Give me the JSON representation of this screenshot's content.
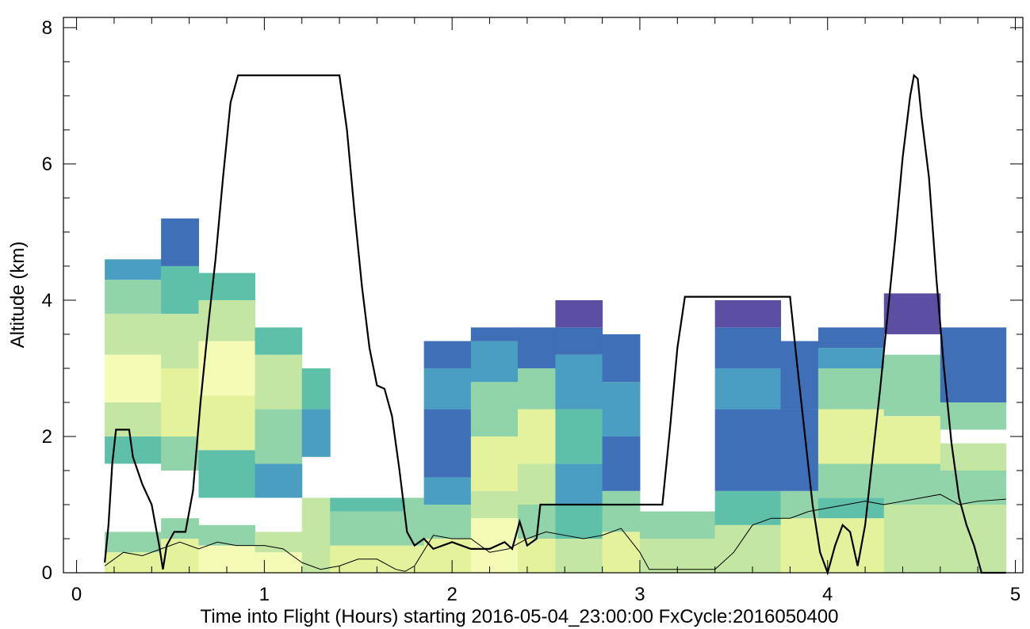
{
  "chart_data": {
    "type": "curtain",
    "xlabel": "Time into Flight (Hours) starting 2016-05-04_23:00:00  FxCycle:2016050400",
    "ylabel": "Altitude (km)",
    "xlim": [
      -0.07,
      5.04
    ],
    "ylim": [
      0,
      8.15
    ],
    "xticks": [
      0,
      1,
      2,
      3,
      4,
      5
    ],
    "yticks": [
      0,
      2,
      4,
      6,
      8
    ],
    "xminor": 5,
    "yminor": 4,
    "palette": [
      "#f4fbb4",
      "#e4f29c",
      "#c3e6a2",
      "#91d4a9",
      "#5fc0aa",
      "#4a9ec1",
      "#3f6fb6",
      "#5c4ea3"
    ],
    "curtain": [
      {
        "x": [
          0.15,
          0.45
        ],
        "segments": [
          [
            0,
            0.3,
            1
          ],
          [
            0.3,
            0.6,
            3
          ],
          [
            1.6,
            2.0,
            4
          ],
          [
            2.0,
            2.5,
            2
          ],
          [
            2.5,
            3.2,
            0
          ],
          [
            3.2,
            3.8,
            2
          ],
          [
            3.8,
            4.3,
            3
          ],
          [
            4.3,
            4.6,
            5
          ]
        ]
      },
      {
        "x": [
          0.45,
          0.65
        ],
        "segments": [
          [
            0,
            0.5,
            1
          ],
          [
            0.5,
            0.8,
            3
          ],
          [
            1.5,
            2.0,
            3
          ],
          [
            2.0,
            3.0,
            1
          ],
          [
            3.0,
            3.8,
            2
          ],
          [
            3.8,
            4.5,
            4
          ],
          [
            4.5,
            5.2,
            6
          ]
        ]
      },
      {
        "x": [
          0.65,
          0.95
        ],
        "segments": [
          [
            0,
            0.4,
            0
          ],
          [
            0.4,
            0.7,
            3
          ],
          [
            1.1,
            1.8,
            4
          ],
          [
            1.8,
            2.6,
            1
          ],
          [
            2.6,
            3.4,
            0
          ],
          [
            3.4,
            4.0,
            2
          ],
          [
            4.0,
            4.4,
            4
          ]
        ]
      },
      {
        "x": [
          0.95,
          1.2
        ],
        "segments": [
          [
            0,
            0.3,
            0
          ],
          [
            0.3,
            0.6,
            2
          ],
          [
            1.1,
            1.6,
            5
          ],
          [
            1.6,
            2.4,
            3
          ],
          [
            2.4,
            3.2,
            2
          ],
          [
            3.2,
            3.6,
            4
          ]
        ]
      },
      {
        "x": [
          1.2,
          1.35
        ],
        "segments": [
          [
            0,
            1.1,
            2
          ],
          [
            1.7,
            2.4,
            5
          ],
          [
            2.4,
            3.0,
            4
          ]
        ]
      },
      {
        "x": [
          1.35,
          1.75
        ],
        "segments": [
          [
            0,
            0.4,
            1
          ],
          [
            0.4,
            0.9,
            3
          ],
          [
            0.9,
            1.1,
            4
          ]
        ]
      },
      {
        "x": [
          1.75,
          1.85
        ],
        "segments": [
          [
            0,
            0.4,
            1
          ],
          [
            0.4,
            1.1,
            3
          ]
        ]
      },
      {
        "x": [
          1.85,
          2.1
        ],
        "segments": [
          [
            0,
            0.5,
            1
          ],
          [
            0.5,
            1.0,
            3
          ],
          [
            1.0,
            1.4,
            5
          ],
          [
            1.4,
            2.4,
            6
          ],
          [
            2.4,
            3.0,
            5
          ],
          [
            3.0,
            3.4,
            6
          ]
        ]
      },
      {
        "x": [
          2.1,
          2.35
        ],
        "segments": [
          [
            0,
            0.8,
            0
          ],
          [
            0.8,
            1.2,
            2
          ],
          [
            1.2,
            2.0,
            1
          ],
          [
            2.0,
            2.8,
            3
          ],
          [
            2.8,
            3.4,
            5
          ],
          [
            3.4,
            3.6,
            6
          ]
        ]
      },
      {
        "x": [
          2.35,
          2.55
        ],
        "segments": [
          [
            0,
            0.5,
            1
          ],
          [
            0.5,
            1.0,
            3
          ],
          [
            1.0,
            1.6,
            2
          ],
          [
            1.6,
            2.4,
            1
          ],
          [
            2.4,
            3.0,
            3
          ],
          [
            3.0,
            3.6,
            6
          ]
        ]
      },
      {
        "x": [
          2.55,
          2.8
        ],
        "segments": [
          [
            0,
            0.5,
            2
          ],
          [
            0.5,
            1.0,
            4
          ],
          [
            1.0,
            1.6,
            5
          ],
          [
            1.6,
            2.4,
            4
          ],
          [
            2.4,
            3.2,
            5
          ],
          [
            3.2,
            3.6,
            6
          ],
          [
            3.6,
            4.0,
            7
          ]
        ]
      },
      {
        "x": [
          2.8,
          3.0
        ],
        "segments": [
          [
            0,
            0.6,
            1
          ],
          [
            0.6,
            1.2,
            3
          ],
          [
            1.2,
            2.0,
            6
          ],
          [
            2.0,
            2.8,
            5
          ],
          [
            2.8,
            3.5,
            6
          ]
        ]
      },
      {
        "x": [
          3.0,
          3.4
        ],
        "segments": [
          [
            0,
            0.5,
            2
          ],
          [
            0.5,
            0.9,
            3
          ]
        ]
      },
      {
        "x": [
          3.4,
          3.75
        ],
        "segments": [
          [
            0,
            0.7,
            2
          ],
          [
            0.7,
            1.2,
            4
          ],
          [
            1.2,
            2.4,
            6
          ],
          [
            2.4,
            3.0,
            5
          ],
          [
            3.0,
            3.6,
            6
          ],
          [
            3.6,
            4.0,
            7
          ]
        ]
      },
      {
        "x": [
          3.75,
          3.95
        ],
        "segments": [
          [
            0,
            0.8,
            1
          ],
          [
            0.8,
            1.2,
            3
          ],
          [
            1.2,
            2.4,
            6
          ],
          [
            2.4,
            3.4,
            6
          ]
        ]
      },
      {
        "x": [
          3.95,
          4.3
        ],
        "segments": [
          [
            0,
            0.8,
            1
          ],
          [
            0.8,
            1.1,
            4
          ],
          [
            1.1,
            1.6,
            3
          ],
          [
            1.6,
            2.4,
            1
          ],
          [
            2.4,
            3.0,
            3
          ],
          [
            3.0,
            3.3,
            5
          ],
          [
            3.3,
            3.6,
            6
          ]
        ]
      },
      {
        "x": [
          4.3,
          4.6
        ],
        "segments": [
          [
            0,
            1.0,
            2
          ],
          [
            1.0,
            1.6,
            3
          ],
          [
            1.6,
            2.3,
            1
          ],
          [
            2.3,
            3.2,
            3
          ],
          [
            3.5,
            4.1,
            7
          ]
        ]
      },
      {
        "x": [
          4.6,
          4.95
        ],
        "segments": [
          [
            0,
            1.0,
            2
          ],
          [
            1.0,
            1.5,
            3
          ],
          [
            1.5,
            1.9,
            2
          ],
          [
            2.1,
            2.5,
            3
          ],
          [
            2.5,
            3.6,
            6
          ]
        ]
      }
    ],
    "series": [
      {
        "color": "#000000",
        "width": 2.2,
        "x": [
          0.15,
          0.17,
          0.19,
          0.21,
          0.28,
          0.3,
          0.35,
          0.4,
          0.44,
          0.46,
          0.48,
          0.52,
          0.58,
          0.62,
          0.66,
          0.7,
          0.74,
          0.78,
          0.82,
          0.86,
          1.4,
          1.44,
          1.48,
          1.52,
          1.56,
          1.6,
          1.64,
          1.68,
          1.72,
          1.76,
          1.8,
          1.85,
          1.9,
          2.0,
          2.1,
          2.2,
          2.28,
          2.32,
          2.36,
          2.4,
          2.45,
          2.47,
          3.12,
          3.16,
          3.2,
          3.24,
          3.8,
          3.84,
          3.88,
          3.92,
          3.96,
          4.0,
          4.04,
          4.08,
          4.12,
          4.16,
          4.2,
          4.24,
          4.28,
          4.32,
          4.36,
          4.4,
          4.44,
          4.46,
          4.48,
          4.5,
          4.54,
          4.58,
          4.62,
          4.66,
          4.7,
          4.74,
          4.78,
          4.82,
          4.95
        ],
        "values": [
          0.15,
          0.7,
          1.6,
          2.1,
          2.1,
          1.7,
          1.3,
          1.0,
          0.4,
          0.05,
          0.4,
          0.6,
          0.6,
          1.2,
          2.5,
          3.6,
          4.6,
          5.8,
          6.9,
          7.3,
          7.3,
          6.5,
          5.3,
          4.2,
          3.3,
          2.75,
          2.7,
          2.3,
          1.5,
          0.6,
          0.4,
          0.5,
          0.35,
          0.45,
          0.35,
          0.35,
          0.45,
          0.35,
          0.75,
          0.4,
          0.5,
          1.0,
          1.0,
          2.1,
          3.3,
          4.05,
          4.05,
          3.0,
          2.0,
          1.0,
          0.3,
          0.0,
          0.4,
          0.7,
          0.6,
          0.1,
          0.7,
          1.7,
          2.7,
          3.8,
          4.9,
          6.1,
          7.0,
          7.3,
          7.25,
          6.7,
          5.8,
          4.3,
          3.0,
          1.9,
          1.1,
          0.7,
          0.4,
          0.0,
          0.0
        ]
      },
      {
        "color": "#000000",
        "width": 1,
        "x": [
          0.15,
          0.25,
          0.35,
          0.45,
          0.55,
          0.65,
          0.75,
          0.85,
          1.0,
          1.1,
          1.2,
          1.3,
          1.4,
          1.5,
          1.6,
          1.7,
          1.75,
          1.8,
          1.9,
          2.0,
          2.1,
          2.2,
          2.3,
          2.4,
          2.5,
          2.6,
          2.7,
          2.8,
          2.9,
          3.0,
          3.05,
          3.2,
          3.4,
          3.5,
          3.6,
          3.7,
          3.8,
          3.9,
          4.0,
          4.1,
          4.2,
          4.3,
          4.4,
          4.5,
          4.6,
          4.7,
          4.8,
          4.95
        ],
        "values": [
          0.1,
          0.3,
          0.25,
          0.35,
          0.45,
          0.35,
          0.45,
          0.4,
          0.4,
          0.35,
          0.15,
          0.05,
          0.1,
          0.2,
          0.2,
          0.05,
          0.02,
          0.1,
          0.55,
          0.5,
          0.5,
          0.3,
          0.35,
          0.5,
          0.6,
          0.55,
          0.5,
          0.55,
          0.65,
          0.3,
          0.05,
          0.05,
          0.05,
          0.3,
          0.7,
          0.8,
          0.8,
          0.9,
          0.95,
          1.0,
          1.05,
          1.0,
          1.05,
          1.1,
          1.15,
          1.0,
          1.05,
          1.08
        ]
      }
    ]
  }
}
